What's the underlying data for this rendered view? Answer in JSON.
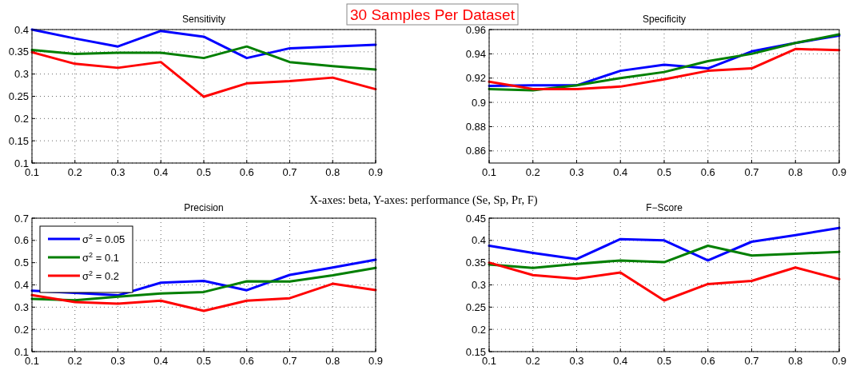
{
  "chart_data": [
    {
      "type": "line",
      "title": "Sensitivity",
      "x": [
        0.1,
        0.2,
        0.3,
        0.4,
        0.5,
        0.6,
        0.7,
        0.8,
        0.9
      ],
      "xlim": [
        0.1,
        0.9
      ],
      "xticks": [
        0.1,
        0.2,
        0.3,
        0.4,
        0.5,
        0.6,
        0.7,
        0.8,
        0.9
      ],
      "ylim": [
        0.1,
        0.4
      ],
      "yticks": [
        0.1,
        0.15,
        0.2,
        0.25,
        0.3,
        0.35,
        0.4
      ],
      "grid": true,
      "legend": false,
      "annotations": [
        "30 Samples Per Dataset"
      ],
      "series": [
        {
          "color": "#0000ff",
          "values": [
            0.4,
            0.38,
            0.362,
            0.397,
            0.384,
            0.336,
            0.358,
            0.362,
            0.366
          ]
        },
        {
          "color": "#007f00",
          "values": [
            0.354,
            0.345,
            0.348,
            0.348,
            0.336,
            0.362,
            0.327,
            0.318,
            0.31
          ]
        },
        {
          "color": "#ff0000",
          "values": [
            0.349,
            0.323,
            0.314,
            0.327,
            0.249,
            0.279,
            0.284,
            0.292,
            0.266
          ]
        }
      ]
    },
    {
      "type": "line",
      "title": "Specificity",
      "x": [
        0.1,
        0.2,
        0.3,
        0.4,
        0.5,
        0.6,
        0.7,
        0.8,
        0.9
      ],
      "xlim": [
        0.1,
        0.9
      ],
      "xticks": [
        0.1,
        0.2,
        0.3,
        0.4,
        0.5,
        0.6,
        0.7,
        0.8,
        0.9
      ],
      "ylim": [
        0.85,
        0.96
      ],
      "yticks": [
        0.86,
        0.88,
        0.9,
        0.92,
        0.94,
        0.96
      ],
      "grid": true,
      "legend": false,
      "series": [
        {
          "color": "#0000ff",
          "values": [
            0.9135,
            0.914,
            0.914,
            0.926,
            0.931,
            0.928,
            0.942,
            0.949,
            0.955
          ]
        },
        {
          "color": "#007f00",
          "values": [
            0.911,
            0.91,
            0.914,
            0.92,
            0.925,
            0.934,
            0.94,
            0.949,
            0.956
          ]
        },
        {
          "color": "#ff0000",
          "values": [
            0.917,
            0.911,
            0.911,
            0.913,
            0.919,
            0.926,
            0.928,
            0.944,
            0.943
          ]
        }
      ]
    },
    {
      "type": "line",
      "title": "Precision",
      "x": [
        0.1,
        0.2,
        0.3,
        0.4,
        0.5,
        0.6,
        0.7,
        0.8,
        0.9
      ],
      "xlim": [
        0.1,
        0.9
      ],
      "xticks": [
        0.1,
        0.2,
        0.3,
        0.4,
        0.5,
        0.6,
        0.7,
        0.8,
        0.9
      ],
      "ylim": [
        0.1,
        0.7
      ],
      "yticks": [
        0.1,
        0.2,
        0.3,
        0.4,
        0.5,
        0.6,
        0.7
      ],
      "grid": true,
      "legend": "top left",
      "annotations": [
        "X-axes: beta, Y-axes: performance (Se, Sp, Pr, F)"
      ],
      "series": [
        {
          "name": "σ$^{2}$ = 0.05",
          "color": "#0000ff",
          "values": [
            0.374,
            0.364,
            0.353,
            0.41,
            0.418,
            0.376,
            0.445,
            0.478,
            0.513
          ]
        },
        {
          "name": "σ$^{2}$ = 0.1",
          "color": "#007f00",
          "values": [
            0.337,
            0.331,
            0.347,
            0.361,
            0.368,
            0.416,
            0.415,
            0.443,
            0.476
          ]
        },
        {
          "name": "σ$^{2}$ = 0.2",
          "color": "#ff0000",
          "values": [
            0.354,
            0.323,
            0.316,
            0.329,
            0.283,
            0.329,
            0.34,
            0.405,
            0.377
          ]
        }
      ]
    },
    {
      "type": "line",
      "title": "F−Score",
      "x": [
        0.1,
        0.2,
        0.3,
        0.4,
        0.5,
        0.6,
        0.7,
        0.8,
        0.9
      ],
      "xlim": [
        0.1,
        0.9
      ],
      "xticks": [
        0.1,
        0.2,
        0.3,
        0.4,
        0.5,
        0.6,
        0.7,
        0.8,
        0.9
      ],
      "ylim": [
        0.15,
        0.45
      ],
      "yticks": [
        0.15,
        0.2,
        0.25,
        0.3,
        0.35,
        0.4,
        0.45
      ],
      "grid": true,
      "legend": false,
      "series": [
        {
          "color": "#0000ff",
          "values": [
            0.388,
            0.372,
            0.358,
            0.403,
            0.4,
            0.355,
            0.397,
            0.412,
            0.428
          ]
        },
        {
          "color": "#007f00",
          "values": [
            0.346,
            0.338,
            0.347,
            0.355,
            0.351,
            0.388,
            0.366,
            0.37,
            0.374
          ]
        },
        {
          "color": "#ff0000",
          "values": [
            0.35,
            0.322,
            0.314,
            0.328,
            0.265,
            0.302,
            0.309,
            0.339,
            0.313
          ]
        }
      ]
    }
  ]
}
